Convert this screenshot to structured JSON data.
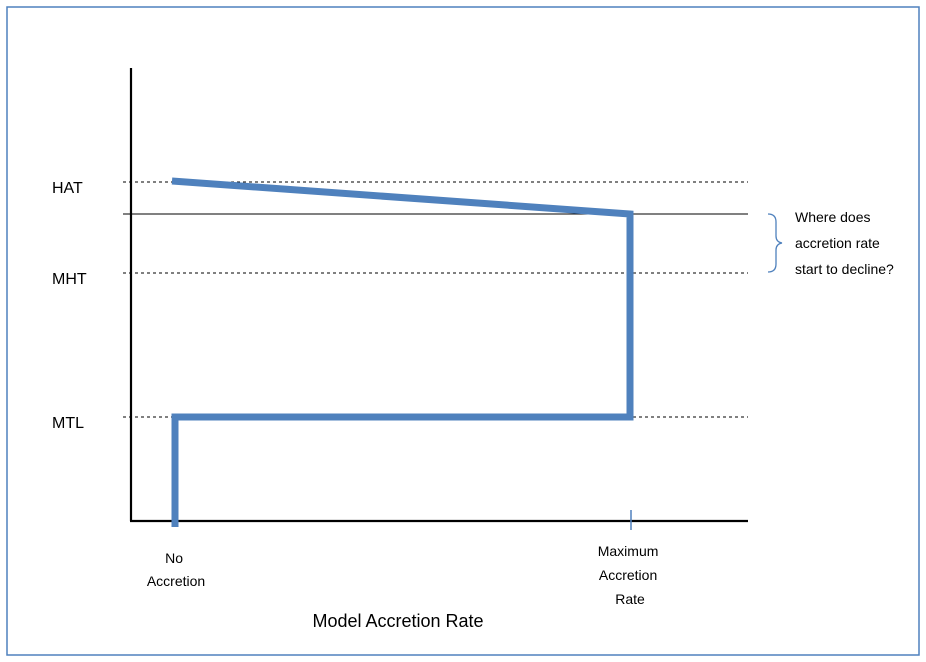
{
  "colors": {
    "frame": "#4f81bd",
    "curve": "#4f81bd",
    "axis": "#000000",
    "guide": "#000000"
  },
  "levels": {
    "hat": "HAT",
    "mht": "MHT",
    "mtl": "MTL"
  },
  "x_ticks": {
    "no_accretion": [
      "No",
      "Accretion"
    ],
    "max_accretion": [
      "Maximum",
      "Accretion",
      "Rate"
    ]
  },
  "x_axis_title": "Model Accretion Rate",
  "annotation": [
    "Where does",
    "accretion rate",
    "start to decline?"
  ]
}
